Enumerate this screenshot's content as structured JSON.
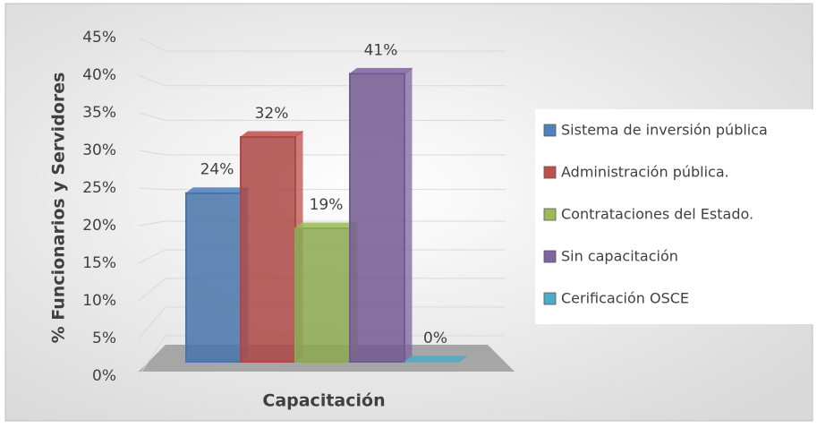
{
  "chart_data": {
    "type": "bar",
    "y_label": "% Funcionarios y Servidores",
    "x_label": "Capacitación",
    "ylim": [
      0,
      45
    ],
    "yticks": [
      {
        "value": 0,
        "label": "0%"
      },
      {
        "value": 5,
        "label": "5%"
      },
      {
        "value": 10,
        "label": "10%"
      },
      {
        "value": 15,
        "label": "15%"
      },
      {
        "value": 20,
        "label": "20%"
      },
      {
        "value": 25,
        "label": "25%"
      },
      {
        "value": 30,
        "label": "30%"
      },
      {
        "value": 35,
        "label": "35%"
      },
      {
        "value": 40,
        "label": "40%"
      },
      {
        "value": 45,
        "label": "45%"
      }
    ],
    "grid": true,
    "legend": "right",
    "series": [
      {
        "name": "Sistema de inversión pública",
        "color": "#4f81bd",
        "values": [
          24
        ],
        "value_labels": [
          "24%"
        ]
      },
      {
        "name": "Administración pública.",
        "color": "#c0504d",
        "values": [
          32
        ],
        "value_labels": [
          "32%"
        ]
      },
      {
        "name": "Contrataciones del Estado.",
        "color": "#9bbb59",
        "values": [
          19
        ],
        "value_labels": [
          "19%"
        ]
      },
      {
        "name": "Sin capacitación",
        "color": "#8064a2",
        "values": [
          41
        ],
        "value_labels": [
          "41%"
        ]
      },
      {
        "name": "Cerificación OSCE",
        "color": "#4bacc6",
        "values": [
          0
        ],
        "value_labels": [
          "0%"
        ]
      }
    ]
  }
}
